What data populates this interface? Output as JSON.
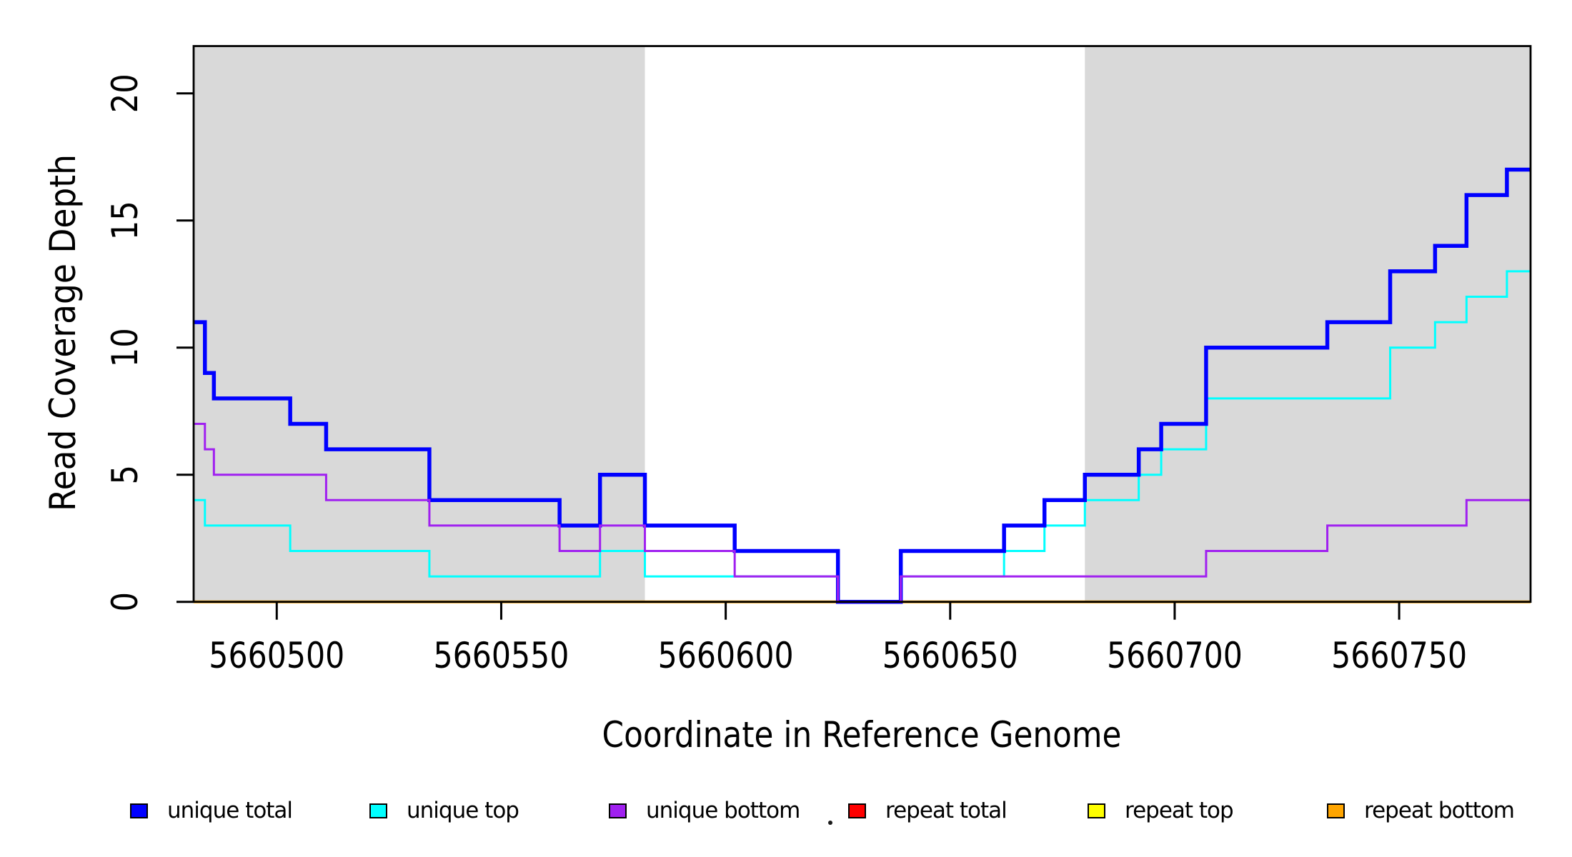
{
  "chart_data": {
    "type": "line",
    "subtype": "step-coverage-plot",
    "title": "",
    "xlabel": "Coordinate in Reference Genome",
    "ylabel": "Read Coverage Depth",
    "xlim": [
      5660481.5,
      5660779.3
    ],
    "ylim": [
      0,
      21.9
    ],
    "x_ticks": [
      5660500,
      5660550,
      5660600,
      5660650,
      5660700,
      5660750
    ],
    "y_ticks": [
      0,
      5,
      10,
      15,
      20
    ],
    "grid": false,
    "background_color": "#FFFFFF",
    "shade_color": "#D9D9D9",
    "shaded_regions": [
      {
        "start": 5660481.5,
        "end": 5660582
      },
      {
        "start": 5660680,
        "end": 5660779.3
      }
    ],
    "legend_position": "bottom",
    "draw_order": [
      "repeat total",
      "repeat top",
      "repeat bottom",
      "unique top",
      "unique total",
      "unique bottom"
    ],
    "series": [
      {
        "name": "unique total",
        "color": "#0000FF",
        "line_width": 5.5,
        "steps": [
          [
            5660482,
            11
          ],
          [
            5660484,
            9
          ],
          [
            5660486,
            8
          ],
          [
            5660503,
            7
          ],
          [
            5660511,
            6
          ],
          [
            5660534,
            4
          ],
          [
            5660563,
            3
          ],
          [
            5660572,
            5
          ],
          [
            5660582,
            3
          ],
          [
            5660602,
            2
          ],
          [
            5660625,
            0
          ],
          [
            5660639,
            2
          ],
          [
            5660662,
            3
          ],
          [
            5660671,
            4
          ],
          [
            5660680,
            5
          ],
          [
            5660692,
            6
          ],
          [
            5660697,
            7
          ],
          [
            5660707,
            10
          ],
          [
            5660734,
            11
          ],
          [
            5660748,
            13
          ],
          [
            5660758,
            14
          ],
          [
            5660765,
            16
          ],
          [
            5660774,
            17
          ]
        ]
      },
      {
        "name": "unique top",
        "color": "#00FFFF",
        "line_width": 3,
        "steps": [
          [
            5660482,
            4
          ],
          [
            5660484,
            3
          ],
          [
            5660503,
            2
          ],
          [
            5660534,
            1
          ],
          [
            5660572,
            2
          ],
          [
            5660582,
            1
          ],
          [
            5660625,
            0
          ],
          [
            5660639,
            1
          ],
          [
            5660662,
            2
          ],
          [
            5660671,
            3
          ],
          [
            5660680,
            4
          ],
          [
            5660692,
            5
          ],
          [
            5660697,
            6
          ],
          [
            5660707,
            8
          ],
          [
            5660748,
            10
          ],
          [
            5660758,
            11
          ],
          [
            5660765,
            12
          ],
          [
            5660774,
            13
          ]
        ]
      },
      {
        "name": "unique bottom",
        "color": "#A020F0",
        "line_width": 3,
        "steps": [
          [
            5660482,
            7
          ],
          [
            5660484,
            6
          ],
          [
            5660486,
            5
          ],
          [
            5660511,
            4
          ],
          [
            5660534,
            3
          ],
          [
            5660563,
            2
          ],
          [
            5660572,
            3
          ],
          [
            5660582,
            2
          ],
          [
            5660602,
            1
          ],
          [
            5660625,
            0
          ],
          [
            5660639,
            1
          ],
          [
            5660707,
            2
          ],
          [
            5660734,
            3
          ],
          [
            5660765,
            4
          ]
        ]
      },
      {
        "name": "repeat total",
        "color": "#FF0000",
        "line_width": 3,
        "steps": [
          [
            5660482,
            0
          ]
        ]
      },
      {
        "name": "repeat top",
        "color": "#FFFF00",
        "line_width": 3,
        "steps": [
          [
            5660482,
            0
          ]
        ]
      },
      {
        "name": "repeat bottom",
        "color": "#FFA500",
        "line_width": 4,
        "steps": [
          [
            5660482,
            0
          ]
        ]
      }
    ],
    "legend": {
      "items": [
        {
          "label": "unique total",
          "color": "#0000FF"
        },
        {
          "label": "unique top",
          "color": "#00FFFF"
        },
        {
          "label": "unique bottom",
          "color": "#A020F0"
        },
        {
          "label": "repeat total",
          "color": "#FF0000"
        },
        {
          "label": "repeat top",
          "color": "#FFFF00"
        },
        {
          "label": "repeat bottom",
          "color": "#FFA500"
        }
      ]
    },
    "annotations": [
      {
        "kind": "stray-dot",
        "text": "."
      }
    ]
  }
}
